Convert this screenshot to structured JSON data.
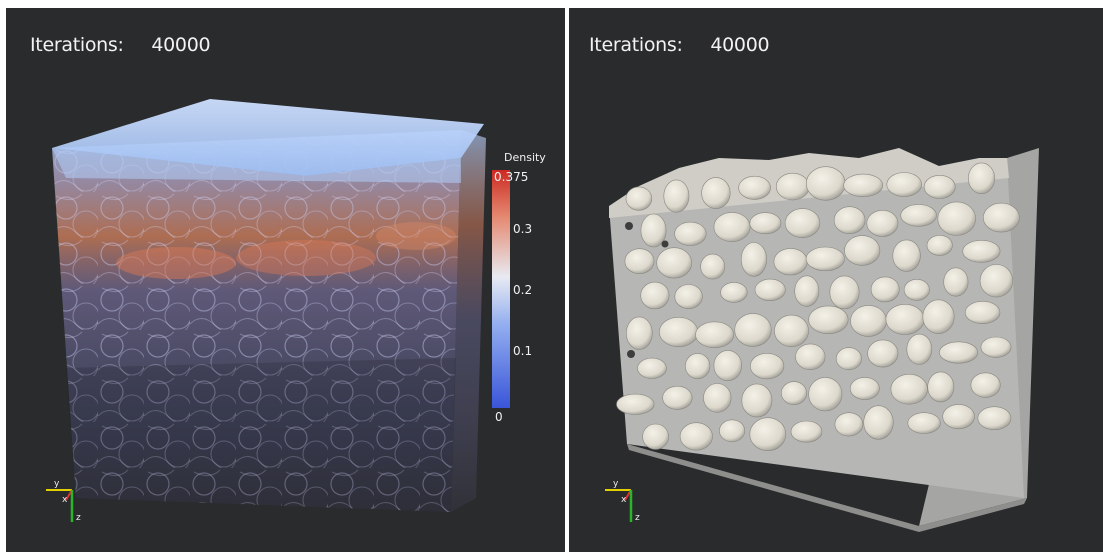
{
  "left_view": {
    "iterations_label": "Iterations:",
    "iterations_value": "40000",
    "colorbar": {
      "title": "Density",
      "ticks": [
        "0.375",
        "0.3",
        "0.2",
        "0.1",
        "0"
      ],
      "colors": {
        "low": "#3a55d8",
        "mid": "#e8eaf2",
        "high": "#cc2a22"
      }
    },
    "axes_labels": {
      "y": "y",
      "x": "x",
      "z": "z"
    }
  },
  "right_view": {
    "iterations_label": "Iterations:",
    "iterations_value": "40000",
    "axes_labels": {
      "y": "y",
      "x": "x",
      "z": "z"
    }
  },
  "colors": {
    "background": "#2a2b2d",
    "solid": "#bdbdbb",
    "grain": "#e6e3da"
  }
}
